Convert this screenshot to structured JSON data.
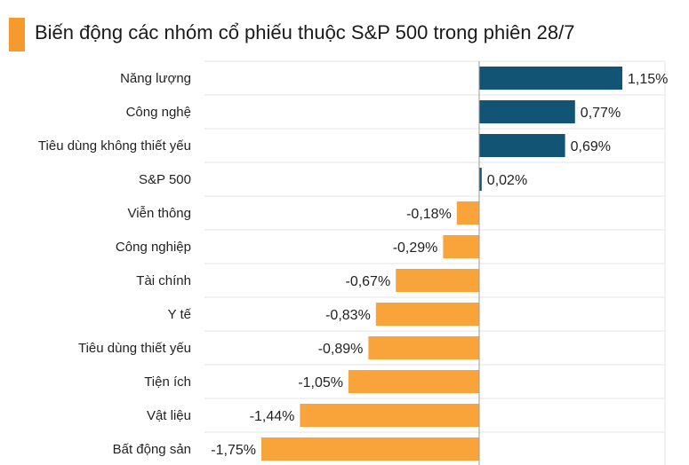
{
  "title": "Biến động các nhóm cổ phiếu thuộc S&P 500 trong phiên 28/7",
  "colors": {
    "positive": "#125474",
    "negative": "#f8a43a",
    "accent": "#f79a2e",
    "grid": "#e6e6e6",
    "zero_line": "#9a9a9a"
  },
  "chart_data": {
    "type": "bar",
    "orientation": "horizontal",
    "title": "Biến động các nhóm cổ phiếu thuộc S&P 500 trong phiên 28/7",
    "categories": [
      "Năng lượng",
      "Công nghệ",
      "Tiêu dùng không thiết yếu",
      "S&P 500",
      "Viễn thông",
      "Công nghiệp",
      "Tài chính",
      "Y tế",
      "Tiêu dùng thiết yếu",
      "Tiện ích",
      "Vật liệu",
      "Bất động sản"
    ],
    "values": [
      1.15,
      0.77,
      0.69,
      0.02,
      -0.18,
      -0.29,
      -0.67,
      -0.83,
      -0.89,
      -1.05,
      -1.44,
      -1.75
    ],
    "value_labels": [
      "1,15%",
      "0,77%",
      "0,69%",
      "0,02%",
      "-0,18%",
      "-0,29%",
      "-0,67%",
      "-0,83%",
      "-0,89%",
      "-1,05%",
      "-1,44%",
      "-1,75%"
    ],
    "xlabel": "",
    "ylabel": "",
    "grid": true
  }
}
